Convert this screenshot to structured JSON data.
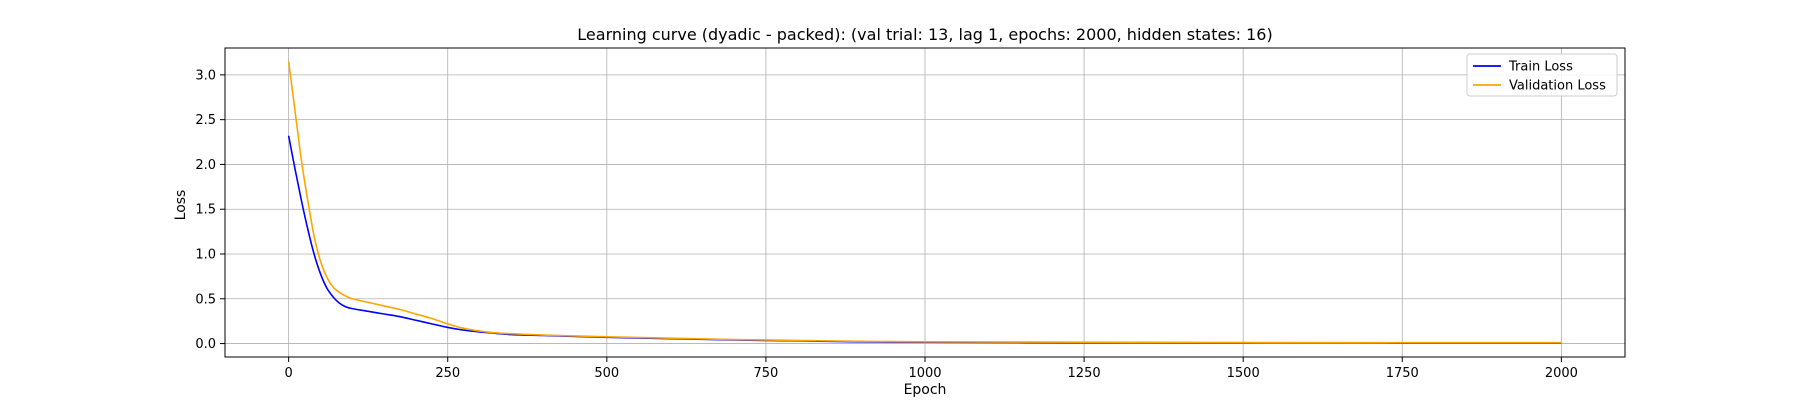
{
  "chart_data": {
    "type": "line",
    "title": "Learning curve (dyadic - packed): (val trial: 13, lag 1, epochs: 2000, hidden states: 16)",
    "xlabel": "Epoch",
    "ylabel": "Loss",
    "xlim": [
      -100,
      2100
    ],
    "ylim": [
      -0.15,
      3.3
    ],
    "xticks": [
      0,
      250,
      500,
      750,
      1000,
      1250,
      1500,
      1750,
      2000
    ],
    "yticks": [
      0.0,
      0.5,
      1.0,
      1.5,
      2.0,
      2.5,
      3.0
    ],
    "xtick_labels": [
      "0",
      "250",
      "500",
      "750",
      "1000",
      "1250",
      "1500",
      "1750",
      "2000"
    ],
    "ytick_labels": [
      "0.0",
      "0.5",
      "1.0",
      "1.5",
      "2.0",
      "2.5",
      "3.0"
    ],
    "grid": true,
    "legend_position": "top-right",
    "series": [
      {
        "name": "Train Loss",
        "color": "#0000ff",
        "x": [
          0,
          10,
          20,
          30,
          40,
          50,
          60,
          70,
          80,
          90,
          100,
          125,
          150,
          175,
          200,
          225,
          250,
          275,
          300,
          325,
          350,
          400,
          450,
          500,
          600,
          700,
          800,
          900,
          1000,
          1250,
          1500,
          1750,
          2000
        ],
        "y": [
          2.32,
          1.95,
          1.6,
          1.28,
          1.0,
          0.78,
          0.62,
          0.52,
          0.45,
          0.41,
          0.39,
          0.36,
          0.33,
          0.3,
          0.26,
          0.22,
          0.18,
          0.15,
          0.13,
          0.115,
          0.1,
          0.09,
          0.08,
          0.07,
          0.055,
          0.04,
          0.03,
          0.02,
          0.015,
          0.01,
          0.008,
          0.006,
          0.005
        ]
      },
      {
        "name": "Validation Loss",
        "color": "#ffa500",
        "x": [
          0,
          10,
          20,
          30,
          40,
          50,
          60,
          70,
          80,
          90,
          100,
          125,
          150,
          175,
          200,
          225,
          250,
          275,
          300,
          325,
          350,
          400,
          450,
          500,
          600,
          700,
          800,
          900,
          1000,
          1250,
          1500,
          1750,
          2000
        ],
        "y": [
          3.15,
          2.6,
          2.05,
          1.6,
          1.2,
          0.92,
          0.74,
          0.63,
          0.57,
          0.53,
          0.5,
          0.46,
          0.42,
          0.38,
          0.33,
          0.28,
          0.22,
          0.17,
          0.14,
          0.12,
          0.11,
          0.095,
          0.085,
          0.075,
          0.06,
          0.045,
          0.035,
          0.025,
          0.02,
          0.015,
          0.012,
          0.01,
          0.01
        ]
      }
    ]
  }
}
